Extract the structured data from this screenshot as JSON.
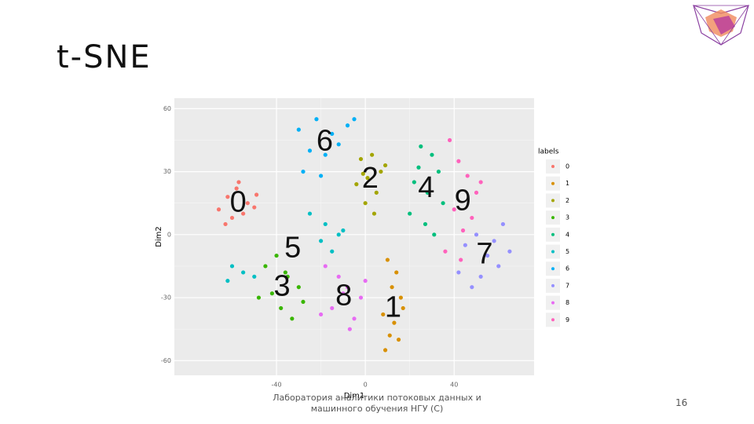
{
  "slide": {
    "title": "t-SNE",
    "footer": "Лаборатория аналитики потоковых данных и машинного обучения НГУ (С)",
    "page_number": "16"
  },
  "chart_data": {
    "type": "scatter",
    "x_label": "Dim1",
    "y_label": "Dim2",
    "legend_title": "labels",
    "legend": "right",
    "grid": true,
    "xlim": [
      -86,
      76
    ],
    "ylim": [
      -67,
      65
    ],
    "xticks": [
      -40,
      0,
      40
    ],
    "yticks": [
      60,
      30,
      0,
      -30,
      -60
    ],
    "annotations": [
      "0",
      "1",
      "2",
      "3",
      "4",
      "5",
      "6",
      "7",
      "8",
      "9"
    ],
    "series": [
      {
        "name": "0",
        "color": "#F8766D",
        "x": [
          -62,
          -58,
          -53,
          -49,
          -66,
          -60,
          -55,
          -50,
          -57,
          -63
        ],
        "values": [
          18,
          22,
          15,
          19,
          12,
          8,
          10,
          13,
          25,
          5
        ]
      },
      {
        "name": "1",
        "color": "#D89000",
        "x": [
          10,
          14,
          12,
          16,
          8,
          13,
          11,
          17,
          9,
          15
        ],
        "values": [
          -12,
          -18,
          -25,
          -30,
          -38,
          -42,
          -48,
          -35,
          -55,
          -50
        ]
      },
      {
        "name": "2",
        "color": "#A3A500",
        "x": [
          -2,
          3,
          7,
          1,
          -4,
          5,
          9,
          0,
          4,
          -1
        ],
        "values": [
          36,
          38,
          30,
          27,
          24,
          20,
          33,
          15,
          10,
          29
        ]
      },
      {
        "name": "3",
        "color": "#39B600",
        "x": [
          -45,
          -40,
          -35,
          -30,
          -48,
          -38,
          -33,
          -42,
          -28,
          -36
        ],
        "values": [
          -15,
          -10,
          -20,
          -25,
          -30,
          -35,
          -40,
          -28,
          -32,
          -18
        ]
      },
      {
        "name": "4",
        "color": "#00BF7D",
        "x": [
          25,
          30,
          33,
          22,
          28,
          35,
          20,
          27,
          31,
          24
        ],
        "values": [
          42,
          38,
          30,
          25,
          20,
          15,
          10,
          5,
          0,
          32
        ]
      },
      {
        "name": "5",
        "color": "#00BFC4",
        "x": [
          -25,
          -18,
          -12,
          -20,
          -15,
          -10,
          -60,
          -55,
          -50,
          -62
        ],
        "values": [
          10,
          5,
          0,
          -3,
          -8,
          2,
          -15,
          -18,
          -20,
          -22
        ]
      },
      {
        "name": "6",
        "color": "#00B0F6",
        "x": [
          -30,
          -22,
          -15,
          -8,
          -25,
          -18,
          -12,
          -28,
          -5,
          -20
        ],
        "values": [
          50,
          55,
          48,
          52,
          40,
          38,
          43,
          30,
          55,
          28
        ]
      },
      {
        "name": "7",
        "color": "#9590FF",
        "x": [
          45,
          50,
          55,
          60,
          65,
          52,
          48,
          58,
          42,
          62
        ],
        "values": [
          -5,
          0,
          -10,
          -15,
          -8,
          -20,
          -25,
          -3,
          -18,
          5
        ]
      },
      {
        "name": "8",
        "color": "#E76BF3",
        "x": [
          -18,
          -12,
          -8,
          -2,
          -15,
          -5,
          -10,
          -20,
          0,
          -7
        ],
        "values": [
          -15,
          -20,
          -25,
          -30,
          -35,
          -40,
          -28,
          -38,
          -22,
          -45
        ]
      },
      {
        "name": "9",
        "color": "#FF62BC",
        "x": [
          38,
          42,
          46,
          50,
          40,
          48,
          44,
          36,
          52,
          43
        ],
        "values": [
          45,
          35,
          28,
          20,
          12,
          8,
          2,
          -8,
          25,
          -12
        ]
      }
    ]
  }
}
